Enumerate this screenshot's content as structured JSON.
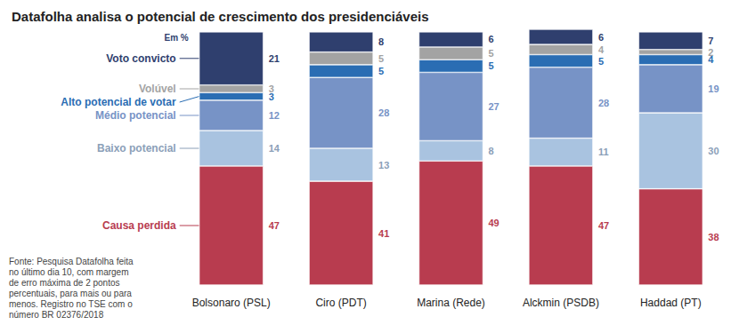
{
  "chart_data": {
    "type": "bar",
    "title": "Datafolha analisa o potencial de crescimento dos presidenciáveis",
    "annotations": [
      "Em %",
      "Fonte: Pesquisa Datafolha feita no último dia 10, com margem de erro máxima de 2 pontos percentuais, para mais ou para menos. Registro no TSE com o número BR 02376/2018"
    ],
    "categories": [
      "Bolsonaro (PSL)",
      "Ciro (PDT)",
      "Marina (Rede)",
      "Alckmin (PSDB)",
      "Haddad (PT)"
    ],
    "series": [
      {
        "name": "Causa perdida",
        "color": "#b83c4f",
        "values": [
          47,
          41,
          49,
          47,
          38
        ]
      },
      {
        "name": "Baixo potencial",
        "color": "#a9c3e0",
        "values": [
          14,
          13,
          8,
          11,
          30
        ]
      },
      {
        "name": "Médio potencial",
        "color": "#7793c6",
        "values": [
          12,
          28,
          27,
          28,
          19
        ]
      },
      {
        "name": "Alto potencial de votar",
        "color": "#2a6db3",
        "values": [
          3,
          5,
          5,
          5,
          4
        ]
      },
      {
        "name": "Volúvel",
        "color": "#a3a3a3",
        "values": [
          3,
          5,
          5,
          4,
          2
        ]
      },
      {
        "name": "Voto convicto",
        "color": "#2f3f6e",
        "values": [
          21,
          8,
          6,
          6,
          7
        ]
      }
    ],
    "ylim": [
      0,
      101
    ],
    "stacked": true,
    "data_labels": true,
    "tick_labels": "x",
    "grid": false
  }
}
